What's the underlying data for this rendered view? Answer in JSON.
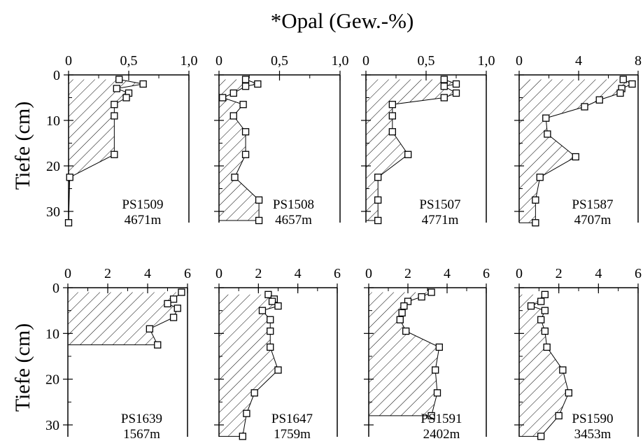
{
  "figure": {
    "title": "*Opal (Gew.-%)",
    "ylabel": "Tiefe (cm)"
  },
  "chart_data": [
    {
      "type": "line",
      "core": "PS1509",
      "water_depth": "4671m",
      "xlim": [
        0,
        1.0
      ],
      "xticks": [
        0,
        0.5,
        1.0
      ],
      "xtick_labels": [
        "0",
        "0,5",
        "1,0"
      ],
      "ylim": [
        0,
        32
      ],
      "yticks": [
        0,
        10,
        20,
        30
      ],
      "ytick_labels": [
        "0",
        "10",
        "20",
        "30"
      ],
      "fill": "hatched",
      "points": [
        {
          "x": 0.42,
          "y": 1
        },
        {
          "x": 0.62,
          "y": 2
        },
        {
          "x": 0.4,
          "y": 3
        },
        {
          "x": 0.5,
          "y": 4
        },
        {
          "x": 0.48,
          "y": 5
        },
        {
          "x": 0.38,
          "y": 6.5
        },
        {
          "x": 0.38,
          "y": 9
        },
        {
          "x": 0.38,
          "y": 17.5
        },
        {
          "x": 0.01,
          "y": 22.5
        },
        {
          "x": 0.0,
          "y": 32.5
        }
      ]
    },
    {
      "type": "line",
      "core": "PS1508",
      "water_depth": "4657m",
      "xlim": [
        0,
        1.0
      ],
      "xticks": [
        0,
        0.5,
        1.0
      ],
      "xtick_labels": [
        "0",
        "0,5",
        "1,0"
      ],
      "ylim": [
        0,
        32
      ],
      "yticks": [
        0,
        10,
        20,
        30
      ],
      "ytick_labels": [
        "0",
        "10",
        "20",
        "30"
      ],
      "fill": "hatched",
      "points": [
        {
          "x": 0.22,
          "y": 1
        },
        {
          "x": 0.32,
          "y": 2
        },
        {
          "x": 0.22,
          "y": 2.5
        },
        {
          "x": 0.12,
          "y": 4
        },
        {
          "x": 0.03,
          "y": 5
        },
        {
          "x": 0.2,
          "y": 6.5
        },
        {
          "x": 0.12,
          "y": 9
        },
        {
          "x": 0.22,
          "y": 12.5
        },
        {
          "x": 0.22,
          "y": 17.5
        },
        {
          "x": 0.13,
          "y": 22.5
        },
        {
          "x": 0.33,
          "y": 27.5
        },
        {
          "x": 0.33,
          "y": 32
        }
      ]
    },
    {
      "type": "line",
      "core": "PS1507",
      "water_depth": "4771m",
      "xlim": [
        0,
        1.0
      ],
      "xticks": [
        0,
        0.5,
        1.0
      ],
      "xtick_labels": [
        "0",
        "0,5",
        "1,0"
      ],
      "ylim": [
        0,
        32
      ],
      "yticks": [
        0,
        10,
        20,
        30
      ],
      "ytick_labels": [
        "0",
        "10",
        "20",
        "30"
      ],
      "fill": "hatched",
      "points": [
        {
          "x": 0.65,
          "y": 1
        },
        {
          "x": 0.75,
          "y": 2
        },
        {
          "x": 0.65,
          "y": 2.5
        },
        {
          "x": 0.75,
          "y": 4
        },
        {
          "x": 0.65,
          "y": 5
        },
        {
          "x": 0.22,
          "y": 6.5
        },
        {
          "x": 0.22,
          "y": 9
        },
        {
          "x": 0.22,
          "y": 12.5
        },
        {
          "x": 0.35,
          "y": 17.5
        },
        {
          "x": 0.1,
          "y": 22.5
        },
        {
          "x": 0.1,
          "y": 27.5
        },
        {
          "x": 0.1,
          "y": 32
        }
      ]
    },
    {
      "type": "line",
      "core": "PS1587",
      "water_depth": "4707m",
      "xlim": [
        0,
        8
      ],
      "xticks": [
        0,
        4,
        8
      ],
      "xtick_labels": [
        "0",
        "4",
        "8"
      ],
      "ylim": [
        0,
        32
      ],
      "yticks": [
        0,
        10,
        20,
        30
      ],
      "ytick_labels": [
        "0",
        "10",
        "20",
        "30"
      ],
      "fill": "hatched",
      "points": [
        {
          "x": 7.0,
          "y": 1
        },
        {
          "x": 7.6,
          "y": 2
        },
        {
          "x": 6.9,
          "y": 3
        },
        {
          "x": 6.8,
          "y": 4
        },
        {
          "x": 5.4,
          "y": 5.5
        },
        {
          "x": 4.4,
          "y": 7
        },
        {
          "x": 1.8,
          "y": 9.5
        },
        {
          "x": 1.9,
          "y": 13
        },
        {
          "x": 3.8,
          "y": 18
        },
        {
          "x": 1.4,
          "y": 22.5
        },
        {
          "x": 1.1,
          "y": 27.5
        },
        {
          "x": 1.1,
          "y": 32.5
        }
      ]
    },
    {
      "type": "line",
      "core": "PS1639",
      "water_depth": "1567m",
      "xlim": [
        0,
        6
      ],
      "xticks": [
        0,
        2,
        4,
        6
      ],
      "xtick_labels": [
        "0",
        "2",
        "4",
        "6"
      ],
      "ylim": [
        0,
        32
      ],
      "yticks": [
        0,
        10,
        20,
        30
      ],
      "ytick_labels": [
        "0",
        "10",
        "20",
        "30"
      ],
      "fill": "hatched",
      "points": [
        {
          "x": 5.7,
          "y": 1
        },
        {
          "x": 5.3,
          "y": 2.5
        },
        {
          "x": 5.0,
          "y": 3.5
        },
        {
          "x": 5.5,
          "y": 4.5
        },
        {
          "x": 5.3,
          "y": 6.5
        },
        {
          "x": 4.1,
          "y": 9
        },
        {
          "x": 4.5,
          "y": 12.5
        }
      ]
    },
    {
      "type": "line",
      "core": "PS1647",
      "water_depth": "1759m",
      "xlim": [
        0,
        6
      ],
      "xticks": [
        0,
        2,
        4,
        6
      ],
      "xtick_labels": [
        "0",
        "2",
        "4",
        "6"
      ],
      "ylim": [
        0,
        32
      ],
      "yticks": [
        0,
        10,
        20,
        30
      ],
      "ytick_labels": [
        "0",
        "10",
        "20",
        "30"
      ],
      "fill": "hatched",
      "points": [
        {
          "x": 2.5,
          "y": 1.5
        },
        {
          "x": 2.8,
          "y": 2.5
        },
        {
          "x": 2.7,
          "y": 3
        },
        {
          "x": 3.0,
          "y": 4
        },
        {
          "x": 2.2,
          "y": 5
        },
        {
          "x": 2.6,
          "y": 7
        },
        {
          "x": 2.6,
          "y": 9.5
        },
        {
          "x": 2.6,
          "y": 13
        },
        {
          "x": 3.0,
          "y": 18
        },
        {
          "x": 1.8,
          "y": 23
        },
        {
          "x": 1.4,
          "y": 27.5
        },
        {
          "x": 1.2,
          "y": 32.5
        }
      ]
    },
    {
      "type": "line",
      "core": "PS1591",
      "water_depth": "2402m",
      "xlim": [
        0,
        6
      ],
      "xticks": [
        0,
        2,
        4,
        6
      ],
      "xtick_labels": [
        "0",
        "2",
        "4",
        "6"
      ],
      "ylim": [
        0,
        32
      ],
      "yticks": [
        0,
        10,
        20,
        30
      ],
      "ytick_labels": [
        "0",
        "10",
        "20",
        "30"
      ],
      "fill": "hatched",
      "points": [
        {
          "x": 3.2,
          "y": 1
        },
        {
          "x": 2.7,
          "y": 2
        },
        {
          "x": 2.0,
          "y": 3
        },
        {
          "x": 1.8,
          "y": 4
        },
        {
          "x": 1.7,
          "y": 5.5
        },
        {
          "x": 1.6,
          "y": 7
        },
        {
          "x": 1.9,
          "y": 9.5
        },
        {
          "x": 3.6,
          "y": 13
        },
        {
          "x": 3.4,
          "y": 18
        },
        {
          "x": 3.5,
          "y": 23
        },
        {
          "x": 3.2,
          "y": 28
        }
      ]
    },
    {
      "type": "line",
      "core": "PS1590",
      "water_depth": "3453m",
      "xlim": [
        0,
        6
      ],
      "xticks": [
        0,
        2,
        4,
        6
      ],
      "xtick_labels": [
        "0",
        "2",
        "4",
        "6"
      ],
      "ylim": [
        0,
        32
      ],
      "yticks": [
        0,
        10,
        20,
        30
      ],
      "ytick_labels": [
        "0",
        "10",
        "20",
        "30"
      ],
      "fill": "hatched",
      "points": [
        {
          "x": 1.3,
          "y": 1.5
        },
        {
          "x": 1.1,
          "y": 3
        },
        {
          "x": 0.6,
          "y": 4
        },
        {
          "x": 1.3,
          "y": 5
        },
        {
          "x": 1.1,
          "y": 7
        },
        {
          "x": 1.3,
          "y": 9.5
        },
        {
          "x": 1.4,
          "y": 13
        },
        {
          "x": 2.2,
          "y": 18
        },
        {
          "x": 2.5,
          "y": 23
        },
        {
          "x": 2.0,
          "y": 28
        },
        {
          "x": 1.1,
          "y": 32.5
        }
      ]
    }
  ]
}
